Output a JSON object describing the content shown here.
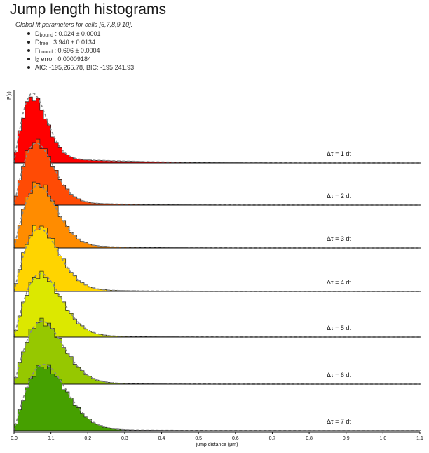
{
  "title": "Jump length histograms",
  "global_fit": {
    "caption": "Global fit parameters for cells [6,7,8,9,10].",
    "items": [
      {
        "symbol": "D",
        "sub": "bound",
        "text": " : 0.024 ± 0.0001"
      },
      {
        "symbol": "D",
        "sub": "free",
        "text": " : 3.940 ± 0.0134"
      },
      {
        "symbol": "F",
        "sub": "bound",
        "text": " : 0.696 ± 0.0004"
      },
      {
        "symbol": "l",
        "sub": "2",
        "text": " error: 0.00009184"
      },
      {
        "symbol": "",
        "sub": "",
        "text": "AIC: -195,265.78, BIC: -195,241.93"
      }
    ]
  },
  "chart_data": {
    "type": "histogram",
    "ylabel": "P(r)",
    "xlabel": "jump distance (μm)",
    "xlim": [
      0.0,
      1.1
    ],
    "x_ticks": [
      "0.0",
      "0.1",
      "0.2",
      "0.3",
      "0.4",
      "0.5",
      "0.6",
      "0.7",
      "0.8",
      "0.9",
      "1.0",
      "1.1"
    ],
    "bin_width": 0.01,
    "series": [
      {
        "name": "Δτ = 1 dt",
        "color": "#ff0000",
        "peak_x": 0.05,
        "spread": 0.028,
        "tail_amp": 0.12,
        "tail_decay": 0.07,
        "fit_peak": 1.06
      },
      {
        "name": "Δτ = 2 dt",
        "color": "#ff4b05",
        "peak_x": 0.06,
        "spread": 0.034,
        "tail_amp": 0.1,
        "tail_decay": 0.06,
        "fit_peak": 0.98
      },
      {
        "name": "Δτ = 3 dt",
        "color": "#ff8c00",
        "peak_x": 0.065,
        "spread": 0.037,
        "tail_amp": 0.09,
        "tail_decay": 0.06,
        "fit_peak": 0.97
      },
      {
        "name": "Δτ = 4 dt",
        "color": "#ffd400",
        "peak_x": 0.068,
        "spread": 0.04,
        "tail_amp": 0.08,
        "tail_decay": 0.06,
        "fit_peak": 0.97
      },
      {
        "name": "Δτ = 5 dt",
        "color": "#dce800",
        "peak_x": 0.072,
        "spread": 0.042,
        "tail_amp": 0.07,
        "tail_decay": 0.06,
        "fit_peak": 1.02
      },
      {
        "name": "Δτ = 6 dt",
        "color": "#96c800",
        "peak_x": 0.075,
        "spread": 0.044,
        "tail_amp": 0.06,
        "tail_decay": 0.06,
        "fit_peak": 1.0
      },
      {
        "name": "Δτ = 7 dt",
        "color": "#46a000",
        "peak_x": 0.08,
        "spread": 0.046,
        "tail_amp": 0.05,
        "tail_decay": 0.06,
        "fit_peak": 1.03
      }
    ],
    "fit_style": "dashed-gray",
    "grid": false
  }
}
